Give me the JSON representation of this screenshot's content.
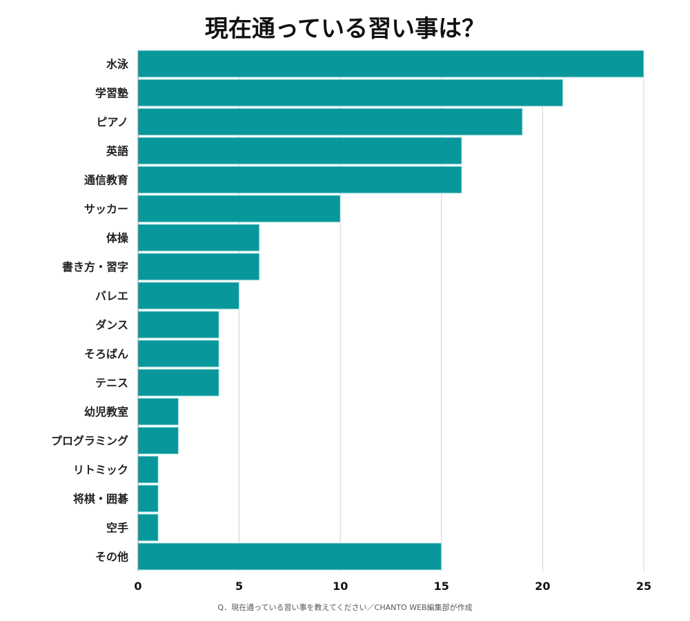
{
  "chart_data": {
    "type": "bar",
    "orientation": "horizontal",
    "title": "現在通っている習い事は？",
    "categories": [
      "水泳",
      "学習塾",
      "ピアノ",
      "英語",
      "通信教育",
      "サッカー",
      "体操",
      "書き方・習字",
      "バレエ",
      "ダンス",
      "そろばん",
      "テニス",
      "幼児教室",
      "プログラミング",
      "リトミック",
      "将棋・囲碁",
      "空手",
      "その他"
    ],
    "values": [
      25,
      21,
      19,
      16,
      16,
      10,
      6,
      6,
      5,
      4,
      4,
      4,
      2,
      2,
      1,
      1,
      1,
      15
    ],
    "xlim": [
      0,
      25
    ],
    "xticks": [
      0,
      5,
      10,
      15,
      20,
      25
    ],
    "grid": true,
    "xlabel": "",
    "ylabel": "",
    "bar_color": "#08979a",
    "note": "Q．現在通っている習い事を教えてください／CHANTO WEB編集部が作成"
  }
}
